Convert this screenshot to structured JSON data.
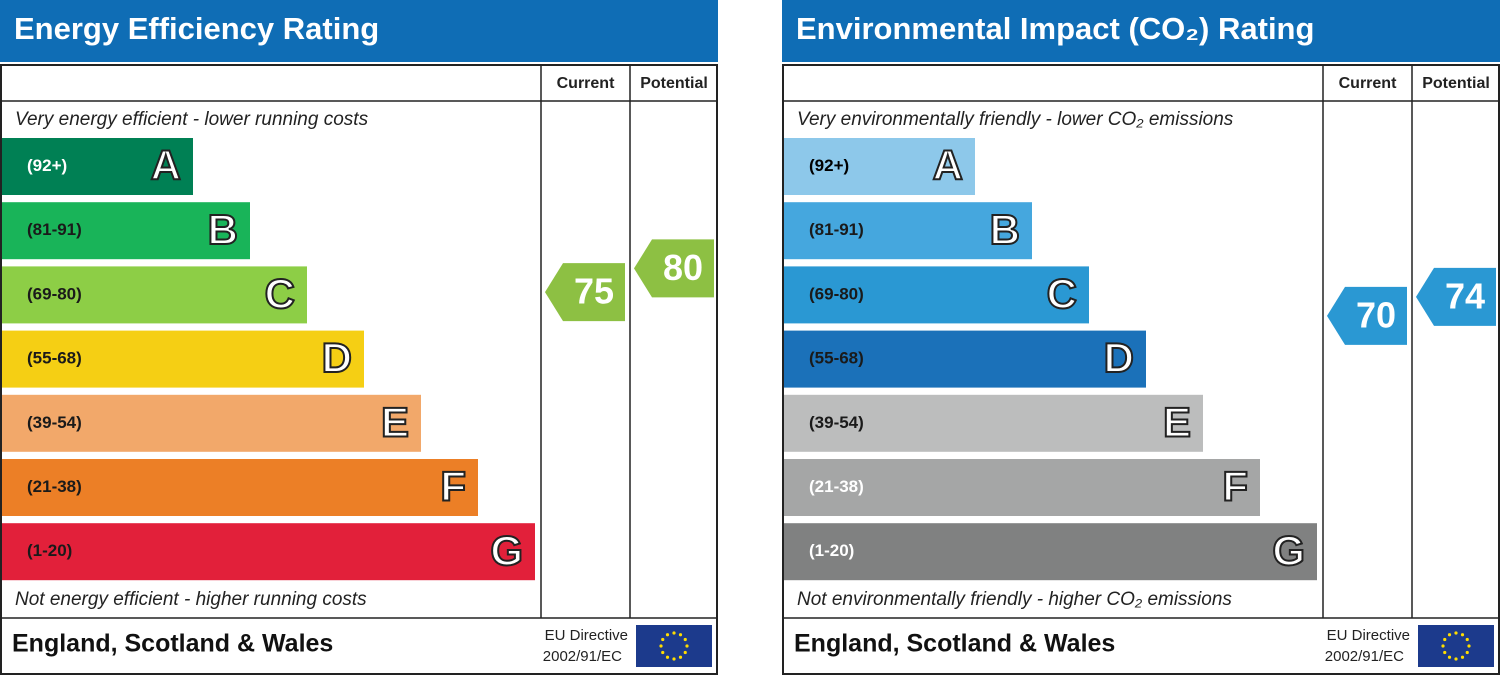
{
  "panels": [
    {
      "title": "Energy Efficiency Rating",
      "columns": [
        "Current",
        "Potential"
      ],
      "top_note": "Very energy efficient - lower running costs",
      "bands": [
        {
          "range": "(92+)",
          "letter": "A",
          "color": "#008054",
          "text_color": "#ffffff"
        },
        {
          "range": "(81-91)",
          "letter": "B",
          "color": "#19b459",
          "text_color": "#1a1a1a"
        },
        {
          "range": "(69-80)",
          "letter": "C",
          "color": "#8dce46",
          "text_color": "#1a1a1a"
        },
        {
          "range": "(55-68)",
          "letter": "D",
          "color": "#f5cf14",
          "text_color": "#1a1a1a"
        },
        {
          "range": "(39-54)",
          "letter": "E",
          "color": "#f2a86a",
          "text_color": "#1a1a1a"
        },
        {
          "range": "(21-38)",
          "letter": "F",
          "color": "#ec7f26",
          "text_color": "#1a1a1a"
        },
        {
          "range": "(1-20)",
          "letter": "G",
          "color": "#e2203a",
          "text_color": "#1a1a1a"
        }
      ],
      "bottom_note": "Not energy efficient - higher running costs",
      "current": 75,
      "current_color": "#8dc043",
      "potential": 80,
      "potential_color": "#8dc043",
      "footer": "England, Scotland & Wales",
      "directive": [
        "EU Directive",
        "2002/91/EC"
      ]
    },
    {
      "title": "Environmental Impact (CO₂) Rating",
      "columns": [
        "Current",
        "Potential"
      ],
      "top_note": "Very environmentally friendly - lower CO₂ emissions",
      "bands": [
        {
          "range": "(92+)",
          "letter": "A",
          "color": "#8dc8ea",
          "text_color": "#000000"
        },
        {
          "range": "(81-91)",
          "letter": "B",
          "color": "#45a7de",
          "text_color": "#1a1a1a"
        },
        {
          "range": "(69-80)",
          "letter": "C",
          "color": "#2a98d3",
          "text_color": "#1a1a1a"
        },
        {
          "range": "(55-68)",
          "letter": "D",
          "color": "#1b71b9",
          "text_color": "#1a1a1a"
        },
        {
          "range": "(39-54)",
          "letter": "E",
          "color": "#bcbdbd",
          "text_color": "#1a1a1a"
        },
        {
          "range": "(21-38)",
          "letter": "F",
          "color": "#a5a6a6",
          "text_color": "#ffffff"
        },
        {
          "range": "(1-20)",
          "letter": "G",
          "color": "#808181",
          "text_color": "#ffffff"
        }
      ],
      "bottom_note": "Not environmentally friendly - higher CO₂ emissions",
      "current": 70,
      "current_color": "#2a98d3",
      "potential": 74,
      "potential_color": "#2a98d3",
      "footer": "England, Scotland & Wales",
      "directive": [
        "EU Directive",
        "2002/91/EC"
      ]
    }
  ]
}
